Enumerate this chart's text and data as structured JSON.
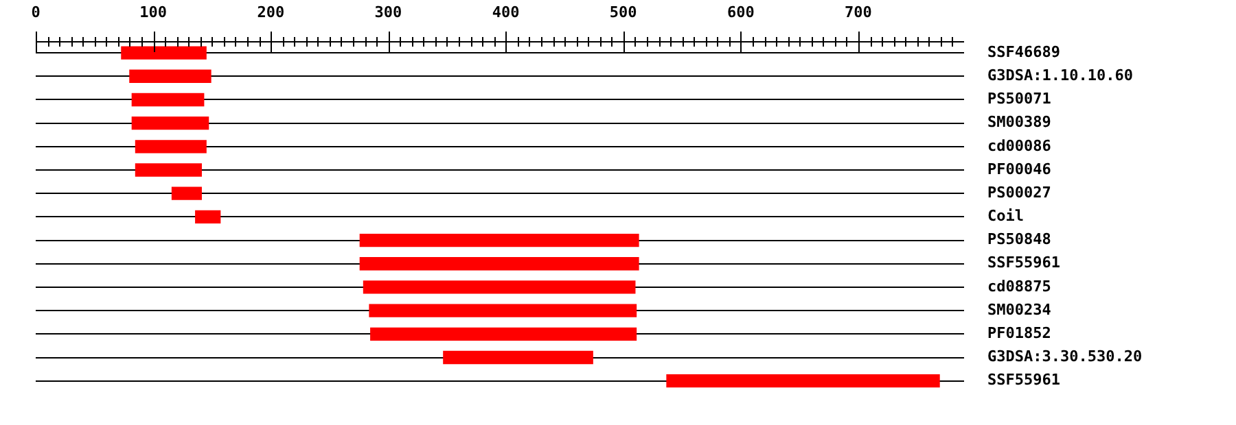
{
  "chart_data": {
    "type": "bar",
    "orientation": "horizontal",
    "categories": [
      "SSF46689",
      "G3DSA:1.10.10.60",
      "PS50071",
      "SM00389",
      "cd00086",
      "PF00046",
      "PS00027",
      "Coil",
      "PS50848",
      "SSF55961",
      "cd08875",
      "SM00234",
      "PF01852",
      "G3DSA:3.30.530.20",
      "SSF55961"
    ],
    "base": [
      73,
      80,
      82,
      82,
      85,
      85,
      116,
      136,
      276,
      276,
      279,
      284,
      285,
      347,
      537
    ],
    "values": [
      72,
      69,
      61,
      65,
      60,
      56,
      25,
      21,
      237,
      237,
      231,
      227,
      226,
      127,
      232
    ],
    "color": "#ff0000",
    "xlim": [
      0,
      790
    ],
    "xticks": [
      0,
      {
        "value": 10,
        "label": null
      },
      {
        "value": 20,
        "label": null
      },
      {
        "value": 30,
        "label": null
      },
      {
        "value": 40,
        "label": null
      },
      {
        "value": 50,
        "label": null
      },
      {
        "value": 60,
        "label": null
      },
      {
        "value": 70,
        "label": null
      },
      {
        "value": 80,
        "label": null
      },
      {
        "value": 90,
        "label": null
      },
      100,
      {
        "value": 110,
        "label": null
      },
      {
        "value": 120,
        "label": null
      },
      {
        "value": 130,
        "label": null
      },
      {
        "value": 140,
        "label": null
      },
      {
        "value": 150,
        "label": null
      },
      {
        "value": 160,
        "label": null
      },
      {
        "value": 170,
        "label": null
      },
      {
        "value": 180,
        "label": null
      },
      {
        "value": 190,
        "label": null
      },
      200,
      {
        "value": 210,
        "label": null
      },
      {
        "value": 220,
        "label": null
      },
      {
        "value": 230,
        "label": null
      },
      {
        "value": 240,
        "label": null
      },
      {
        "value": 250,
        "label": null
      },
      {
        "value": 260,
        "label": null
      },
      {
        "value": 270,
        "label": null
      },
      {
        "value": 280,
        "label": null
      },
      {
        "value": 290,
        "label": null
      },
      300,
      {
        "value": 310,
        "label": null
      },
      {
        "value": 320,
        "label": null
      },
      {
        "value": 330,
        "label": null
      },
      {
        "value": 340,
        "label": null
      },
      {
        "value": 350,
        "label": null
      },
      {
        "value": 360,
        "label": null
      },
      {
        "value": 370,
        "label": null
      },
      {
        "value": 380,
        "label": null
      },
      {
        "value": 390,
        "label": null
      },
      400,
      {
        "value": 410,
        "label": null
      },
      {
        "value": 420,
        "label": null
      },
      {
        "value": 430,
        "label": null
      },
      {
        "value": 440,
        "label": null
      },
      {
        "value": 450,
        "label": null
      },
      {
        "value": 460,
        "label": null
      },
      {
        "value": 470,
        "label": null
      },
      {
        "value": 480,
        "label": null
      },
      {
        "value": 490,
        "label": null
      },
      500,
      {
        "value": 510,
        "label": null
      },
      {
        "value": 520,
        "label": null
      },
      {
        "value": 530,
        "label": null
      },
      {
        "value": 540,
        "label": null
      },
      {
        "value": 550,
        "label": null
      },
      {
        "value": 560,
        "label": null
      },
      {
        "value": 570,
        "label": null
      },
      {
        "value": 580,
        "label": null
      },
      {
        "value": 590,
        "label": null
      },
      600,
      {
        "value": 610,
        "label": null
      },
      {
        "value": 620,
        "label": null
      },
      {
        "value": 630,
        "label": null
      },
      {
        "value": 640,
        "label": null
      },
      {
        "value": 650,
        "label": null
      },
      {
        "value": 660,
        "label": null
      },
      {
        "value": 670,
        "label": null
      },
      {
        "value": 680,
        "label": null
      },
      {
        "value": 690,
        "label": null
      },
      700,
      {
        "value": 710,
        "label": null
      },
      {
        "value": 720,
        "label": null
      },
      {
        "value": 730,
        "label": null
      },
      {
        "value": 740,
        "label": null
      },
      {
        "value": 750,
        "label": null
      },
      {
        "value": 760,
        "label": null
      },
      {
        "value": 770,
        "label": null
      },
      {
        "value": 780,
        "label": null
      }
    ],
    "grid": "y"
  }
}
